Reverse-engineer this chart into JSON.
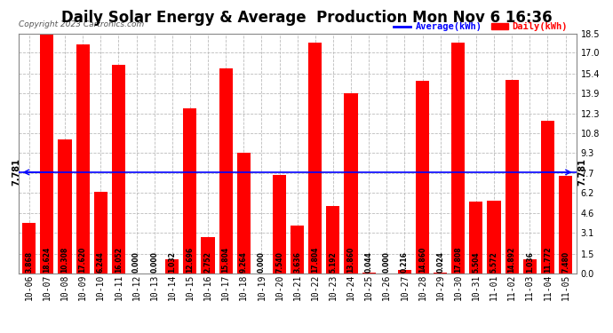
{
  "title": "Daily Solar Energy & Average  Production Mon Nov 6 16:36",
  "copyright": "Copyright 2023 Cartronics.com",
  "legend_average": "Average(kWh)",
  "legend_daily": "Daily(kWh)",
  "average_value": 7.781,
  "categories": [
    "10-06",
    "10-07",
    "10-08",
    "10-09",
    "10-10",
    "10-11",
    "10-12",
    "10-13",
    "10-14",
    "10-15",
    "10-16",
    "10-17",
    "10-18",
    "10-19",
    "10-20",
    "10-21",
    "10-22",
    "10-23",
    "10-24",
    "10-25",
    "10-26",
    "10-27",
    "10-28",
    "10-29",
    "10-30",
    "10-31",
    "11-01",
    "11-02",
    "11-03",
    "11-04",
    "11-05"
  ],
  "values": [
    3.868,
    18.624,
    10.308,
    17.62,
    6.244,
    16.052,
    0.0,
    0.0,
    1.032,
    12.696,
    2.752,
    15.804,
    9.264,
    0.0,
    7.54,
    3.636,
    17.804,
    5.192,
    13.86,
    0.044,
    0.0,
    0.216,
    14.86,
    0.024,
    17.808,
    5.504,
    5.572,
    14.892,
    1.036,
    11.772,
    7.48
  ],
  "bar_color": "#ff0000",
  "line_color": "#0000ff",
  "background_color": "#ffffff",
  "grid_color": "#bbbbbb",
  "ylim": [
    0,
    18.5
  ],
  "yticks": [
    0.0,
    1.5,
    3.1,
    4.6,
    6.2,
    7.7,
    9.3,
    10.8,
    12.3,
    13.9,
    15.4,
    17.0,
    18.5
  ],
  "title_fontsize": 12,
  "bar_label_fontsize": 5.5,
  "tick_fontsize": 7,
  "avg_label_fontsize": 7
}
